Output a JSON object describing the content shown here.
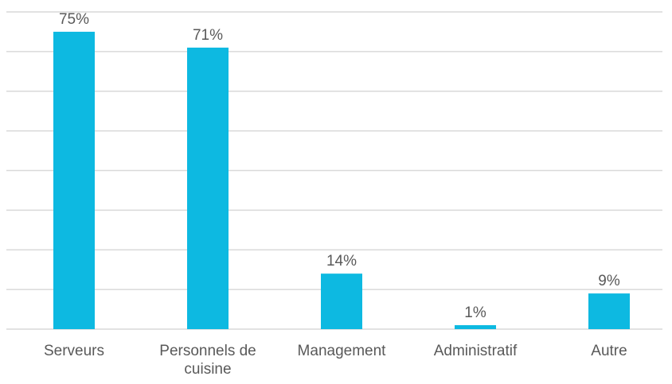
{
  "chart_data": {
    "type": "bar",
    "categories": [
      "Serveurs",
      "Personnels de cuisine",
      "Management",
      "Administratif",
      "Autre"
    ],
    "values": [
      75,
      71,
      14,
      1,
      9
    ],
    "value_labels": [
      "75%",
      "71%",
      "14%",
      "1%",
      "9%"
    ],
    "color": "#0db9e1",
    "ylim": [
      0,
      80
    ],
    "yticks": [
      0,
      10,
      20,
      30,
      40,
      50,
      60,
      70,
      80
    ],
    "grid": true
  }
}
